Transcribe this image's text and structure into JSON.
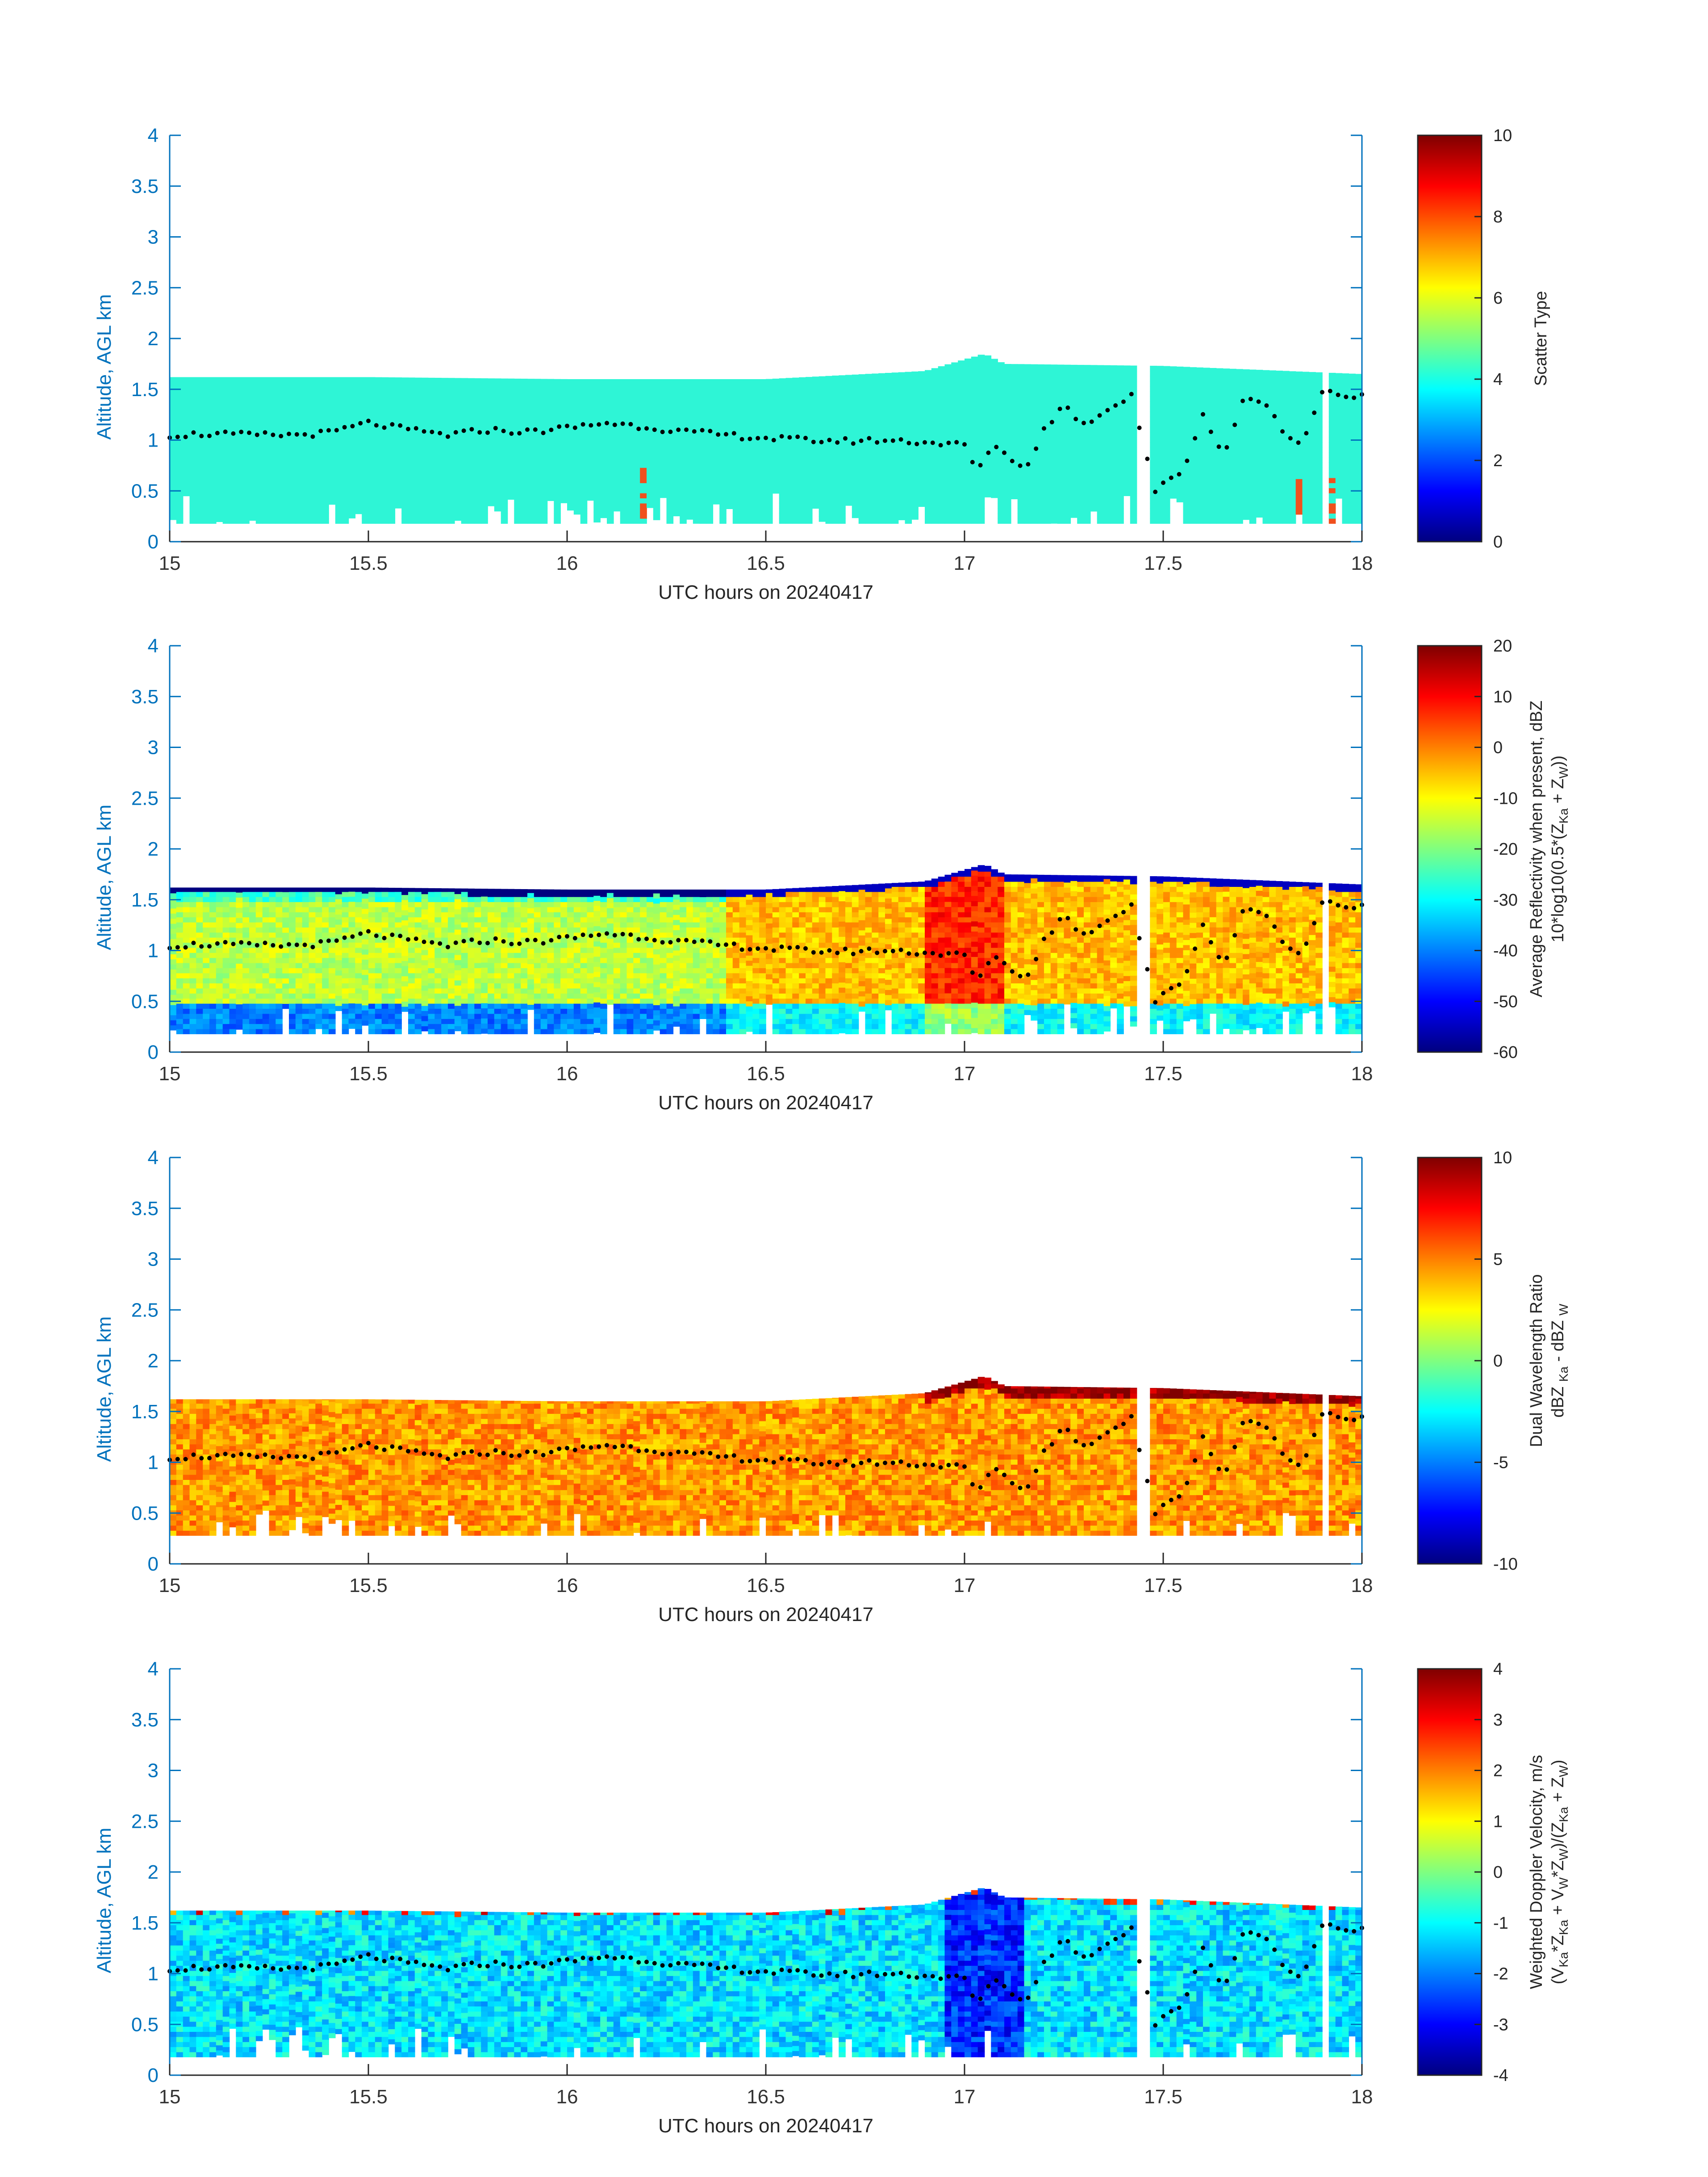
{
  "colors": {
    "axis_left": "#0072bd",
    "axis_bottom": "#262626",
    "scatter_type_main": "#2ef5d6",
    "scatter_type_rare": "#f0501e",
    "cloud_base_dots": "#000000"
  },
  "chart_data": [
    {
      "type": "heatmap",
      "panel": "scatter-type",
      "xlabel": "UTC hours on 20240417",
      "ylabel": "Altitude, AGL km",
      "xlim": [
        15,
        18
      ],
      "ylim": [
        0,
        4
      ],
      "xticks": [
        "15",
        "15.5",
        "16",
        "16.5",
        "17",
        "17.5",
        "18"
      ],
      "yticks": [
        "0",
        "0.5",
        "1",
        "1.5",
        "2",
        "2.5",
        "3",
        "3.5",
        "4"
      ],
      "colorbar": {
        "label_main": "Scatter Type",
        "range": [
          0,
          10
        ],
        "ticks": [
          "0",
          "2",
          "4",
          "6",
          "8",
          "10"
        ]
      },
      "echo_top_km": [
        {
          "x": 15.0,
          "y": 1.62
        },
        {
          "x": 15.5,
          "y": 1.62
        },
        {
          "x": 16.0,
          "y": 1.6
        },
        {
          "x": 16.5,
          "y": 1.6
        },
        {
          "x": 16.9,
          "y": 1.68
        },
        {
          "x": 17.05,
          "y": 1.85
        },
        {
          "x": 17.1,
          "y": 1.75
        },
        {
          "x": 17.5,
          "y": 1.73
        },
        {
          "x": 18.0,
          "y": 1.65
        }
      ],
      "echo_base_km": 0.18,
      "dominant_value": 4,
      "rare_value": 8
    },
    {
      "type": "heatmap",
      "panel": "reflectivity",
      "xlabel": "UTC hours on 20240417",
      "ylabel": "Altitude, AGL km",
      "xlim": [
        15,
        18
      ],
      "ylim": [
        0,
        4
      ],
      "xticks": [
        "15",
        "15.5",
        "16",
        "16.5",
        "17",
        "17.5",
        "18"
      ],
      "yticks": [
        "0",
        "0.5",
        "1",
        "1.5",
        "2",
        "2.5",
        "3",
        "3.5",
        "4"
      ],
      "colorbar": {
        "label_main": "Average Reflectivity when present, dBZ",
        "label_formula_parts": [
          "10*log10(0.5*(Z",
          "Ka",
          " + Z",
          "W",
          "))"
        ],
        "range": [
          -60,
          20
        ],
        "ticks": [
          "-60",
          "-50",
          "-40",
          "-30",
          "-20",
          "-10",
          "0",
          "10",
          "20"
        ]
      }
    },
    {
      "type": "heatmap",
      "panel": "dual-wavelength-ratio",
      "xlabel": "UTC hours on 20240417",
      "ylabel": "Altitude, AGL km",
      "xlim": [
        15,
        18
      ],
      "ylim": [
        0,
        4
      ],
      "xticks": [
        "15",
        "15.5",
        "16",
        "16.5",
        "17",
        "17.5",
        "18"
      ],
      "yticks": [
        "0",
        "0.5",
        "1",
        "1.5",
        "2",
        "2.5",
        "3",
        "3.5",
        "4"
      ],
      "colorbar": {
        "label_main": "Dual Wavelength Ratio",
        "label_formula_parts": [
          "dBZ ",
          "Ka",
          " - dBZ ",
          "W",
          ""
        ],
        "range": [
          -10,
          10
        ],
        "ticks": [
          "-10",
          "-5",
          "0",
          "5",
          "10"
        ]
      }
    },
    {
      "type": "heatmap",
      "panel": "doppler-velocity",
      "xlabel": "UTC hours on 20240417",
      "ylabel": "Altitude, AGL km",
      "xlim": [
        15,
        18
      ],
      "ylim": [
        0,
        4
      ],
      "xticks": [
        "15",
        "15.5",
        "16",
        "16.5",
        "17",
        "17.5",
        "18"
      ],
      "yticks": [
        "0",
        "0.5",
        "1",
        "1.5",
        "2",
        "2.5",
        "3",
        "3.5",
        "4"
      ],
      "colorbar": {
        "label_main": "Weighted Doppler Velocity, m/s",
        "label_formula_parts": [
          "(V",
          "Ka",
          "*Z",
          "Ka",
          " + V",
          "W",
          "*Z",
          "W",
          ")/(Z",
          "Ka",
          " + Z",
          "W",
          ")"
        ],
        "range": [
          -4,
          4
        ],
        "ticks": [
          "-4",
          "-3",
          "-2",
          "-1",
          "0",
          "1",
          "2",
          "3",
          "4"
        ]
      }
    }
  ],
  "cloud_base_km": [
    {
      "x": 15.0,
      "y": 1.05
    },
    {
      "x": 15.1,
      "y": 1.06
    },
    {
      "x": 15.2,
      "y": 1.05
    },
    {
      "x": 15.3,
      "y": 1.05
    },
    {
      "x": 15.4,
      "y": 1.07
    },
    {
      "x": 15.5,
      "y": 1.17
    },
    {
      "x": 15.6,
      "y": 1.1
    },
    {
      "x": 15.7,
      "y": 1.05
    },
    {
      "x": 15.8,
      "y": 1.1
    },
    {
      "x": 15.9,
      "y": 1.08
    },
    {
      "x": 16.0,
      "y": 1.12
    },
    {
      "x": 16.1,
      "y": 1.17
    },
    {
      "x": 16.2,
      "y": 1.13
    },
    {
      "x": 16.3,
      "y": 1.08
    },
    {
      "x": 16.4,
      "y": 1.05
    },
    {
      "x": 16.5,
      "y": 1.02
    },
    {
      "x": 16.6,
      "y": 1.0
    },
    {
      "x": 16.7,
      "y": 0.99
    },
    {
      "x": 16.8,
      "y": 1.0
    },
    {
      "x": 16.9,
      "y": 0.98
    },
    {
      "x": 17.0,
      "y": 0.95
    },
    {
      "x": 17.03,
      "y": 0.7
    },
    {
      "x": 17.08,
      "y": 0.95
    },
    {
      "x": 17.15,
      "y": 0.7
    },
    {
      "x": 17.2,
      "y": 1.1
    },
    {
      "x": 17.25,
      "y": 1.35
    },
    {
      "x": 17.3,
      "y": 1.15
    },
    {
      "x": 17.35,
      "y": 1.28
    },
    {
      "x": 17.42,
      "y": 1.45
    },
    {
      "x": 17.48,
      "y": 0.5
    },
    {
      "x": 17.55,
      "y": 0.7
    },
    {
      "x": 17.6,
      "y": 1.25
    },
    {
      "x": 17.65,
      "y": 0.85
    },
    {
      "x": 17.7,
      "y": 1.38
    },
    {
      "x": 17.75,
      "y": 1.4
    },
    {
      "x": 17.8,
      "y": 1.1
    },
    {
      "x": 17.85,
      "y": 0.95
    },
    {
      "x": 17.9,
      "y": 1.5
    },
    {
      "x": 17.95,
      "y": 1.4
    },
    {
      "x": 18.0,
      "y": 1.42
    }
  ]
}
